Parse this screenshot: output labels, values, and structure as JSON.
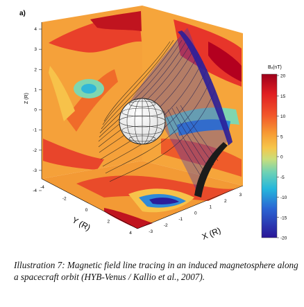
{
  "figure": {
    "panel_label": "a)",
    "colorbar": {
      "title": "Bₓ(nT)",
      "ticks": [
        "20",
        "15",
        "10",
        "5",
        "0",
        "-5",
        "-10",
        "-15",
        "-20"
      ],
      "colors": [
        "#b3001f",
        "#e8202a",
        "#f26b25",
        "#f9a93a",
        "#f5c84a",
        "#8fd0a0",
        "#2db8d8",
        "#2f6fd8",
        "#2a1e9a"
      ]
    },
    "z_axis": {
      "label": "Z (R)",
      "ticks": [
        "4",
        "3",
        "2",
        "1",
        "0",
        "-1",
        "-2",
        "-3",
        "-4"
      ]
    },
    "y_axis": {
      "label": "Y (R)",
      "ticks": [
        "-4",
        "-2",
        "0",
        "2",
        "4"
      ]
    },
    "x_axis": {
      "label": "X (R)",
      "ticks": [
        "-3",
        "-2",
        "-1",
        "0",
        "1",
        "2",
        "3"
      ]
    }
  },
  "caption": {
    "text": "Illustration 7: Magnetic field line tracing in an induced magnetosphere along a spacecraft orbit (HYB-Venus / Kallio et al., 2007)."
  }
}
